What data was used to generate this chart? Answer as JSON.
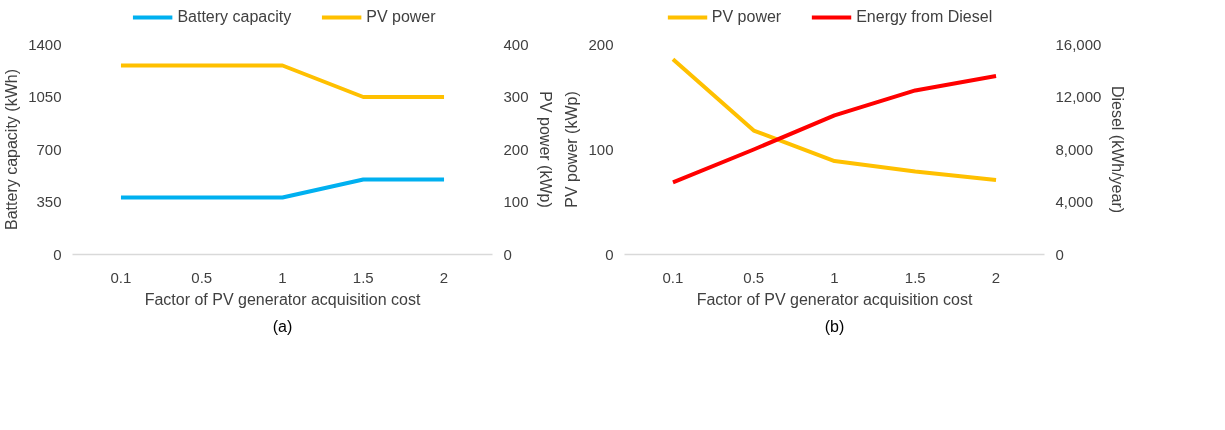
{
  "chart_data": [
    {
      "type": "line",
      "categories": [
        "0.1",
        "0.5",
        "1",
        "1.5",
        "2"
      ],
      "xlabel": "Factor of PV generator acquisition cost",
      "ylabel": "Battery capacity (kWh)",
      "y2label": "PV power (kWp)",
      "series": [
        {
          "name": "Battery capacity",
          "color": "#00b0f0",
          "values": [
            380,
            380,
            380,
            500,
            500
          ]
        },
        {
          "name": "PV power",
          "color": "#ffc000",
          "axis": "y2",
          "values": [
            360,
            360,
            360,
            300,
            300
          ]
        }
      ],
      "ylim": [
        0,
        1400
      ],
      "yticks": [
        0,
        350,
        700,
        1050,
        1400
      ],
      "y2lim": [
        0,
        400
      ],
      "y2ticks": [
        0,
        100,
        200,
        300,
        400
      ],
      "grid": false,
      "legend": "top",
      "marker": "none",
      "line_style": "solid",
      "annotations": [
        "(a)"
      ]
    },
    {
      "type": "line",
      "categories": [
        "0.1",
        "0.5",
        "1",
        "1.5",
        "2"
      ],
      "xlabel": "Factor of PV generator acquisition cost",
      "ylabel": "PV power (kWp)",
      "y2label": "Diesel (kWh/year)",
      "series": [
        {
          "name": "PV power",
          "color": "#ffc000",
          "values": [
            186,
            118,
            89,
            79,
            71
          ]
        },
        {
          "name": "Energy from Diesel",
          "color": "#ff0000",
          "axis": "y2",
          "values": [
            5500,
            8000,
            10600,
            12500,
            13600
          ]
        }
      ],
      "ylim": [
        0,
        200
      ],
      "yticks": [
        0,
        100,
        200
      ],
      "y2lim": [
        0,
        16000
      ],
      "y2ticks": [
        0,
        {
          "value": 4000,
          "label": "4,000"
        },
        {
          "value": 8000,
          "label": "8,000"
        },
        {
          "value": 12000,
          "label": "12,000"
        },
        {
          "value": 16000,
          "label": "16,000"
        }
      ],
      "grid": false,
      "legend": "top",
      "marker": "none",
      "line_style": "solid",
      "annotations": [
        "(b)"
      ]
    }
  ]
}
